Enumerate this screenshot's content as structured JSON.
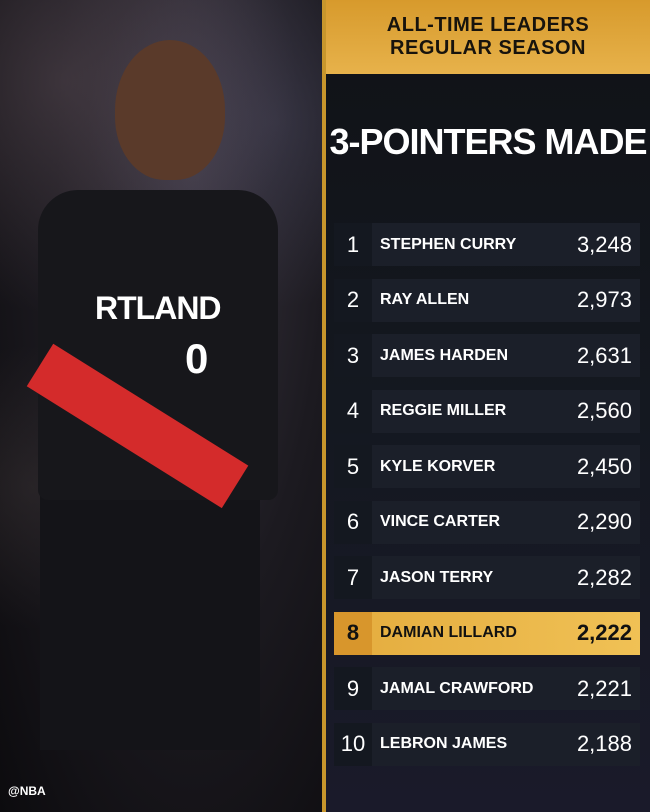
{
  "photo": {
    "credit": "@NBA",
    "jersey_text": "RTLAND",
    "jersey_number": "0"
  },
  "header": {
    "line1": "ALL-TIME LEADERS",
    "line2": "REGULAR SEASON"
  },
  "title": "3-POINTERS MADE",
  "colors": {
    "gold": "#e4ac3e",
    "row_bg": "#1b1f29"
  },
  "highlight_rank": 8,
  "leaders": [
    {
      "rank": "1",
      "name": "STEPHEN CURRY",
      "value": "3,248"
    },
    {
      "rank": "2",
      "name": "RAY ALLEN",
      "value": "2,973"
    },
    {
      "rank": "3",
      "name": "JAMES HARDEN",
      "value": "2,631"
    },
    {
      "rank": "4",
      "name": "REGGIE MILLER",
      "value": "2,560"
    },
    {
      "rank": "5",
      "name": "KYLE KORVER",
      "value": "2,450"
    },
    {
      "rank": "6",
      "name": "VINCE CARTER",
      "value": "2,290"
    },
    {
      "rank": "7",
      "name": "JASON TERRY",
      "value": "2,282"
    },
    {
      "rank": "8",
      "name": "DAMIAN LILLARD",
      "value": "2,222"
    },
    {
      "rank": "9",
      "name": "JAMAL CRAWFORD",
      "value": "2,221"
    },
    {
      "rank": "10",
      "name": "LEBRON JAMES",
      "value": "2,188"
    }
  ]
}
